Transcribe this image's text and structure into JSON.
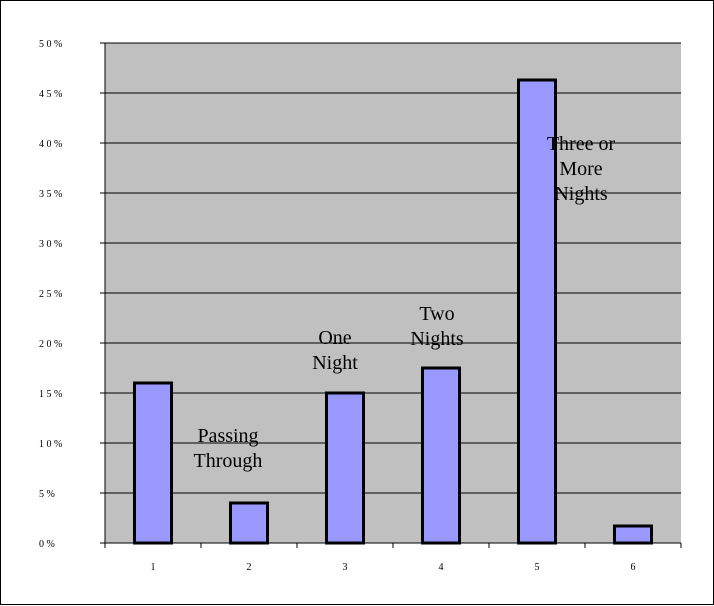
{
  "chart_data": {
    "type": "bar",
    "categories": [
      "1",
      "2",
      "3",
      "4",
      "5",
      "6"
    ],
    "values": [
      16,
      4,
      15,
      17.5,
      46.3,
      1.7
    ],
    "ylim": [
      0,
      50
    ],
    "y_ticks": [
      "0 %",
      "5 %",
      "1 0 %",
      "1 5 %",
      "2 0 %",
      "2 5 %",
      "3 0 %",
      "3 5 %",
      "4 0 %",
      "4 5 %",
      "5 0 %"
    ],
    "grid": true,
    "annotations": [
      {
        "category": "2",
        "lines": [
          "Passing",
          "Through"
        ]
      },
      {
        "category": "3",
        "lines": [
          "One",
          "Night"
        ]
      },
      {
        "category": "4",
        "lines": [
          "Two",
          "Nights"
        ]
      },
      {
        "category": "5",
        "lines": [
          "Three or",
          "More",
          "Nights"
        ]
      }
    ],
    "colors": {
      "plot_background": "#c0c0c0",
      "bar_fill": "#9999ff",
      "bar_stroke": "#000000",
      "grid": "#000000"
    }
  }
}
